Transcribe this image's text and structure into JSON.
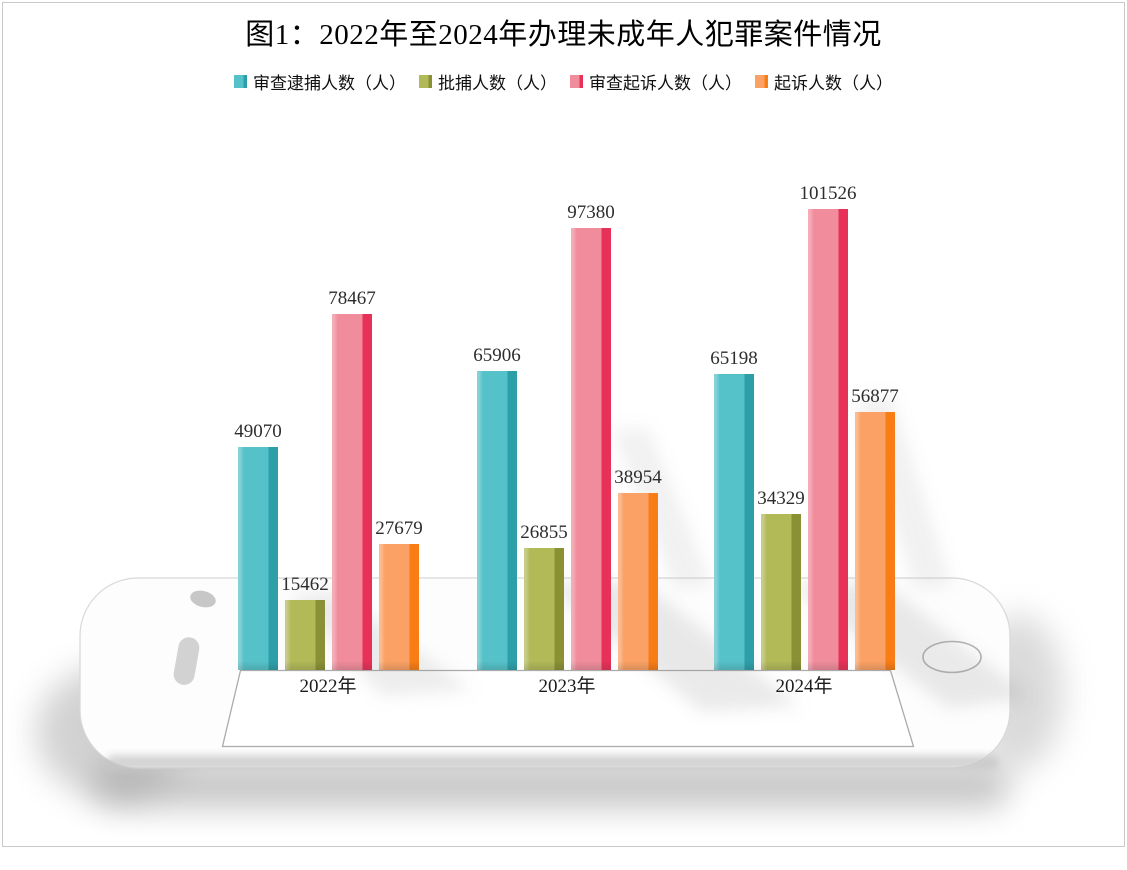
{
  "title": "图1：2022年至2024年办理未成年人犯罪案件情况",
  "chart_data": {
    "type": "bar",
    "title": "图1：2022年至2024年办理未成年人犯罪案件情况",
    "categories": [
      "2022年",
      "2023年",
      "2024年"
    ],
    "series": [
      {
        "key": "review-arrest",
        "name": "审查逮捕人数（人）",
        "color": "#55c1c9",
        "side_color": "#2d9fa9",
        "values": [
          49070,
          65906,
          65198
        ]
      },
      {
        "key": "approved-arrest",
        "name": "批捕人数（人）",
        "color": "#b2b957",
        "side_color": "#8a9135",
        "values": [
          15462,
          26855,
          34329
        ]
      },
      {
        "key": "review-prosecution",
        "name": "审查起诉人数（人）",
        "color": "#f08c9b",
        "side_color": "#e73159",
        "values": [
          78467,
          97380,
          101526
        ]
      },
      {
        "key": "prosecution",
        "name": "起诉人数（人）",
        "color": "#fba165",
        "side_color": "#f87d15",
        "values": [
          27679,
          38954,
          56877
        ]
      }
    ],
    "value_labels": true,
    "legend_position": "top",
    "grid": false,
    "ylim": [
      0,
      101526
    ],
    "background": "phone-mockup"
  }
}
